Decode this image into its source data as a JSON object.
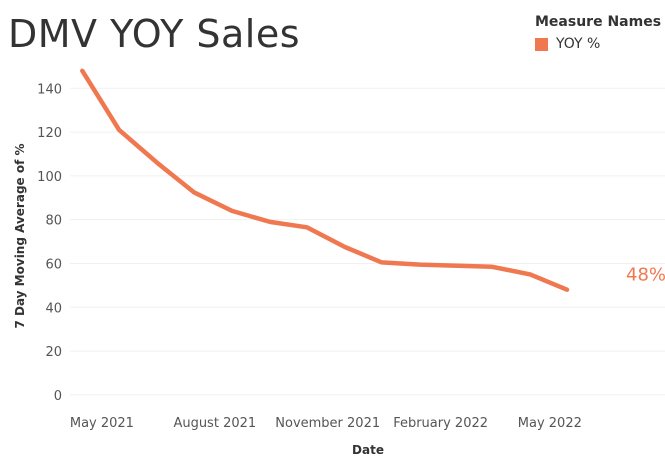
{
  "chart_data": {
    "type": "line",
    "title": "DMV YOY Sales",
    "xlabel": "Date",
    "ylabel": "7 Day Moving Average of %",
    "ylim": [
      -6,
      152
    ],
    "yticks": [
      0,
      20,
      40,
      60,
      80,
      100,
      120,
      140
    ],
    "xlim": [
      "2021-04-05",
      "2022-07-20"
    ],
    "xticks": [
      {
        "date": "2021-05-01",
        "label": "May 2021"
      },
      {
        "date": "2021-08-01",
        "label": "August 2021"
      },
      {
        "date": "2021-11-01",
        "label": "November 2021"
      },
      {
        "date": "2022-02-01",
        "label": "February 2022"
      },
      {
        "date": "2022-05-01",
        "label": "May 2022"
      }
    ],
    "grid": true,
    "legend": {
      "title": "Measure Names",
      "position": "top-right"
    },
    "series": [
      {
        "name": "YOY %",
        "color": "#F07850",
        "end_label": "48%",
        "points": [
          {
            "x": "2021-04-15",
            "y": 148
          },
          {
            "x": "2021-05-15",
            "y": 121
          },
          {
            "x": "2021-06-15",
            "y": 106
          },
          {
            "x": "2021-07-15",
            "y": 92.5
          },
          {
            "x": "2021-08-15",
            "y": 84
          },
          {
            "x": "2021-09-15",
            "y": 79
          },
          {
            "x": "2021-10-15",
            "y": 76.5
          },
          {
            "x": "2021-11-15",
            "y": 67.5
          },
          {
            "x": "2021-12-15",
            "y": 60.5
          },
          {
            "x": "2022-01-15",
            "y": 59.5
          },
          {
            "x": "2022-02-15",
            "y": 59
          },
          {
            "x": "2022-03-15",
            "y": 58.5
          },
          {
            "x": "2022-04-15",
            "y": 55
          },
          {
            "x": "2022-05-15",
            "y": 48
          }
        ]
      }
    ]
  }
}
